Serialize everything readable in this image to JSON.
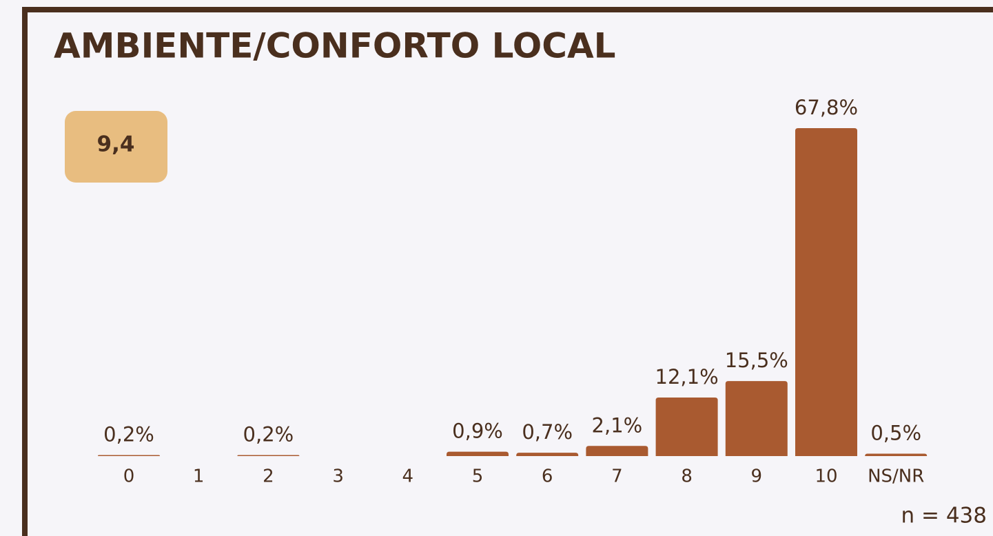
{
  "chart_data": {
    "type": "bar",
    "title": "AMBIENTE/CONFORTO LOCAL",
    "score": "9,4",
    "note": "n = 438",
    "categories": [
      "0",
      "1",
      "2",
      "3",
      "4",
      "5",
      "6",
      "7",
      "8",
      "9",
      "10",
      "NS/NR"
    ],
    "values": [
      0.2,
      null,
      0.2,
      null,
      null,
      0.9,
      0.7,
      2.1,
      12.1,
      15.5,
      67.8,
      0.5
    ],
    "value_labels": [
      "0,2%",
      null,
      "0,2%",
      null,
      null,
      "0,9%",
      "0,7%",
      "2,1%",
      "12,1%",
      "15,5%",
      "67,8%",
      "0,5%"
    ],
    "color": "#a95a30"
  }
}
